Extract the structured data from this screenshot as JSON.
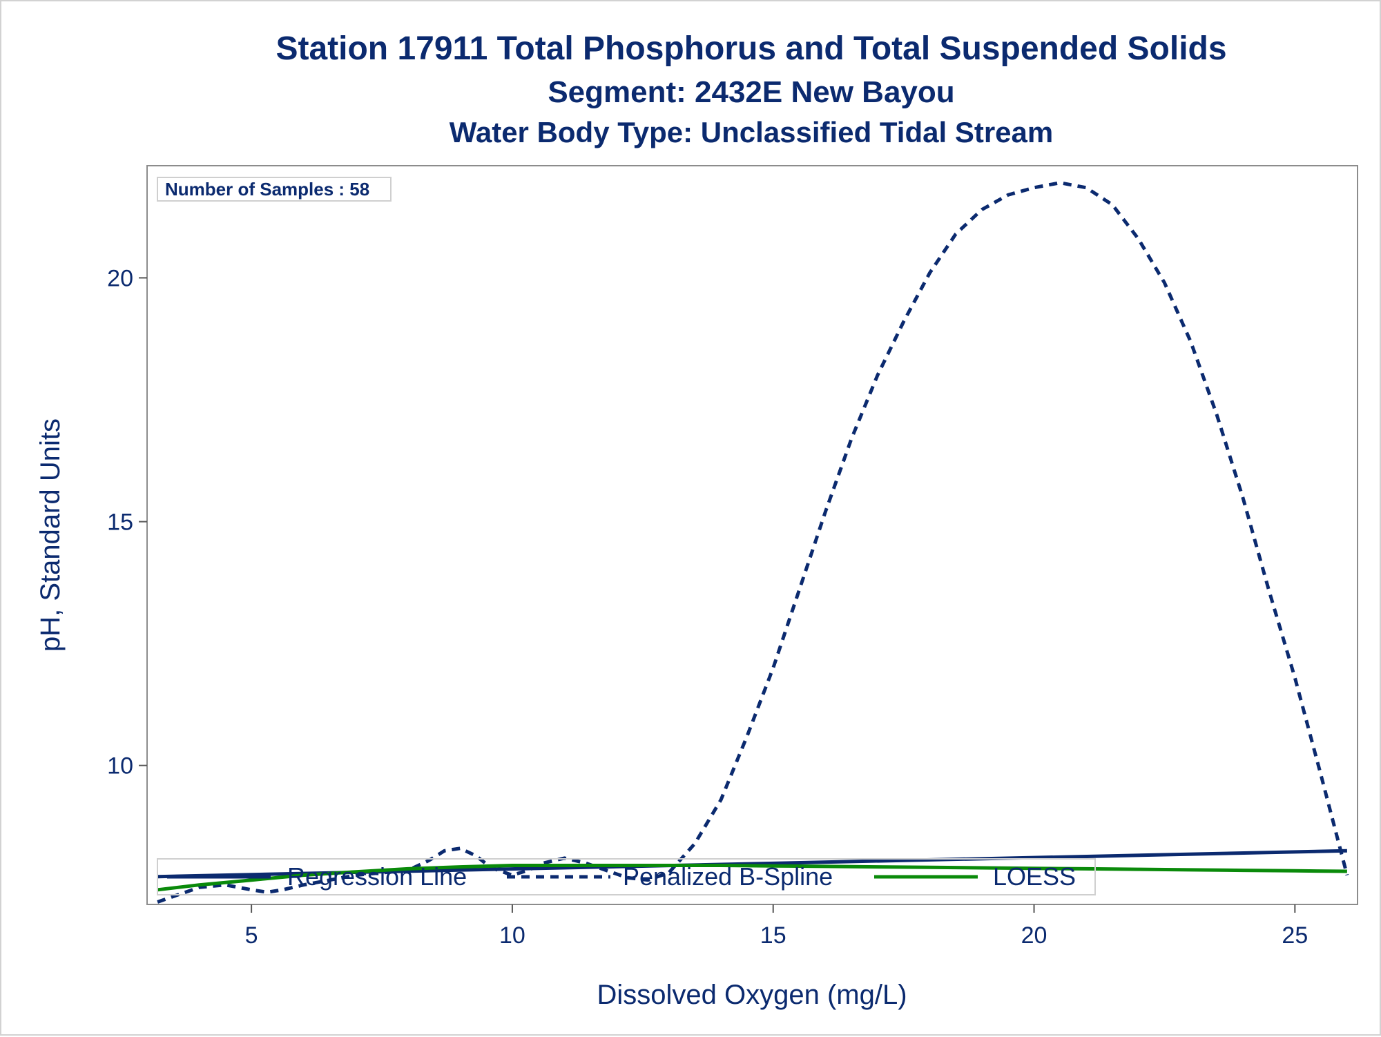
{
  "chart_data": {
    "type": "line",
    "title": "Station 17911  Total Phosphorus and Total Suspended Solids",
    "subtitle": "Segment: 2432E  New Bayou",
    "subtitle2": "Water Body Type: Unclassified Tidal Stream",
    "xlabel": "Dissolved Oxygen (mg/L)",
    "ylabel": "pH, Standard Units",
    "xlim": [
      3.0,
      26.2
    ],
    "ylim": [
      7.15,
      22.3
    ],
    "x_ticks": [
      5,
      10,
      15,
      20,
      25
    ],
    "y_ticks": [
      10,
      15,
      20
    ],
    "grid": false,
    "legend_position": "bottom-inside",
    "inset_label": "Number of Samples : 58",
    "series": [
      {
        "name": "Regression Line",
        "style": "solid",
        "color": "#0b2a6f",
        "x": [
          3.2,
          26.0
        ],
        "y": [
          7.72,
          8.25
        ]
      },
      {
        "name": "Penalized B-Spline",
        "style": "dashed",
        "color": "#0b2a6f",
        "x": [
          3.2,
          3.6,
          4.0,
          4.5,
          5.0,
          5.3,
          5.6,
          6.0,
          6.5,
          7.0,
          7.5,
          8.0,
          8.4,
          8.7,
          9.0,
          9.3,
          9.6,
          10.0,
          10.3,
          10.6,
          11.0,
          11.4,
          11.8,
          12.2,
          12.6,
          13.0,
          13.5,
          14.0,
          14.5,
          15.0,
          15.5,
          16.0,
          16.5,
          17.0,
          17.5,
          18.0,
          18.5,
          19.0,
          19.5,
          20.0,
          20.5,
          21.0,
          21.5,
          22.0,
          22.5,
          23.0,
          23.5,
          24.0,
          24.5,
          25.0,
          25.5,
          26.0
        ],
        "y": [
          7.2,
          7.35,
          7.5,
          7.55,
          7.45,
          7.4,
          7.45,
          7.55,
          7.65,
          7.75,
          7.8,
          7.85,
          8.05,
          8.25,
          8.3,
          8.15,
          7.9,
          7.75,
          7.85,
          8.0,
          8.1,
          8.0,
          7.85,
          7.7,
          7.65,
          7.8,
          8.4,
          9.3,
          10.6,
          12.0,
          13.6,
          15.2,
          16.7,
          18.0,
          19.1,
          20.1,
          20.9,
          21.4,
          21.7,
          21.85,
          21.95,
          21.85,
          21.5,
          20.8,
          19.9,
          18.7,
          17.2,
          15.5,
          13.6,
          11.8,
          9.8,
          7.75
        ]
      },
      {
        "name": "LOESS",
        "style": "solid",
        "color": "#0a8a0a",
        "x": [
          3.2,
          4.0,
          5.0,
          6.0,
          7.0,
          8.0,
          9.0,
          10.0,
          11.0,
          12.0,
          13.0,
          14.0,
          15.0,
          16.0,
          17.0,
          18.0,
          19.0,
          20.0,
          21.0,
          22.0,
          23.0,
          24.0,
          25.0,
          26.0
        ],
        "y": [
          7.45,
          7.55,
          7.65,
          7.75,
          7.82,
          7.88,
          7.92,
          7.95,
          7.95,
          7.95,
          7.95,
          7.95,
          7.94,
          7.93,
          7.92,
          7.91,
          7.9,
          7.89,
          7.88,
          7.87,
          7.86,
          7.85,
          7.84,
          7.83
        ]
      }
    ]
  }
}
